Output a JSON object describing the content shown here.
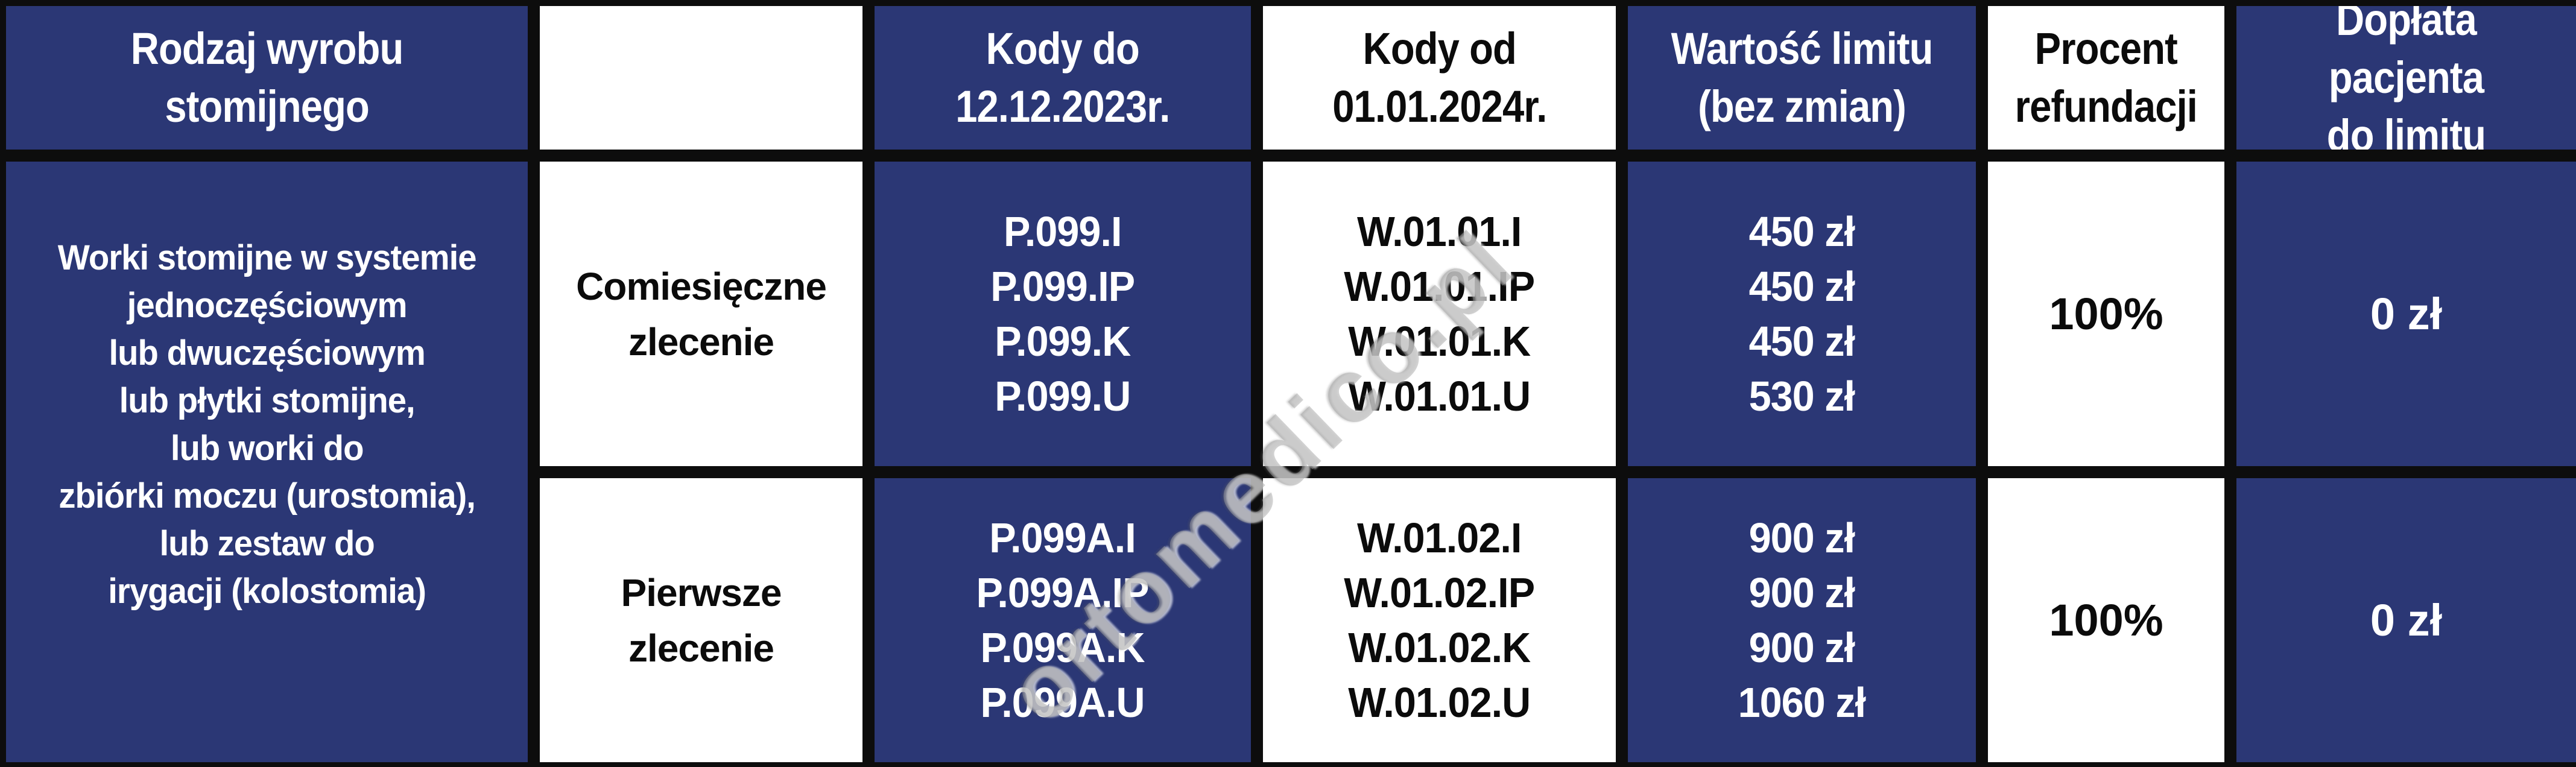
{
  "colors": {
    "navy": "#2b3775",
    "border_black": "#0d0d0d",
    "cell_white": "#ffffff",
    "text_white": "#ffffff",
    "text_black": "#0b0b0b",
    "watermark_gray": "#a5a5a5"
  },
  "watermark": {
    "text": "ortomedico.pl"
  },
  "header": {
    "product_type": "Rodzaj wyrobu\nstomijnego",
    "order_type": "",
    "codes_until": "Kody do\n12.12.2023r.",
    "codes_from": "Kody od\n01.01.2024r.",
    "limit_value": "Wartość limitu\n(bez zmian)",
    "refund_percent": "Procent\nrefundacji",
    "patient_copay": "Dopłata pacjenta\ndo limitu"
  },
  "product": {
    "description": "Worki stomijne w systemie\njednoczęściowym\nlub dwuczęściowym\nlub płytki stomijne,\nlub worki do\nzbiórki moczu (urostomia),\nlub zestaw do\nirygacji (kolostomia)"
  },
  "rows": [
    {
      "order_type": "Comiesięczne\nzlecenie",
      "codes_until": "P.099.I\nP.099.IP\nP.099.K\nP.099.U",
      "codes_from": "W.01.01.I\nW.01.01.IP\nW.01.01.K\nW.01.01.U",
      "limit_value": "450 zł\n450 zł\n450 zł\n530 zł",
      "refund_percent": "100%",
      "patient_copay": "0 zł"
    },
    {
      "order_type": "Pierwsze\nzlecenie",
      "codes_until": "P.099A.I\nP.099A.IP\nP.099A.K\nP.099A.U",
      "codes_from": "W.01.02.I\nW.01.02.IP\nW.01.02.K\nW.01.02.U",
      "limit_value": "900 zł\n900 zł\n900 zł\n1060 zł",
      "refund_percent": "100%",
      "patient_copay": "0 zł"
    }
  ]
}
